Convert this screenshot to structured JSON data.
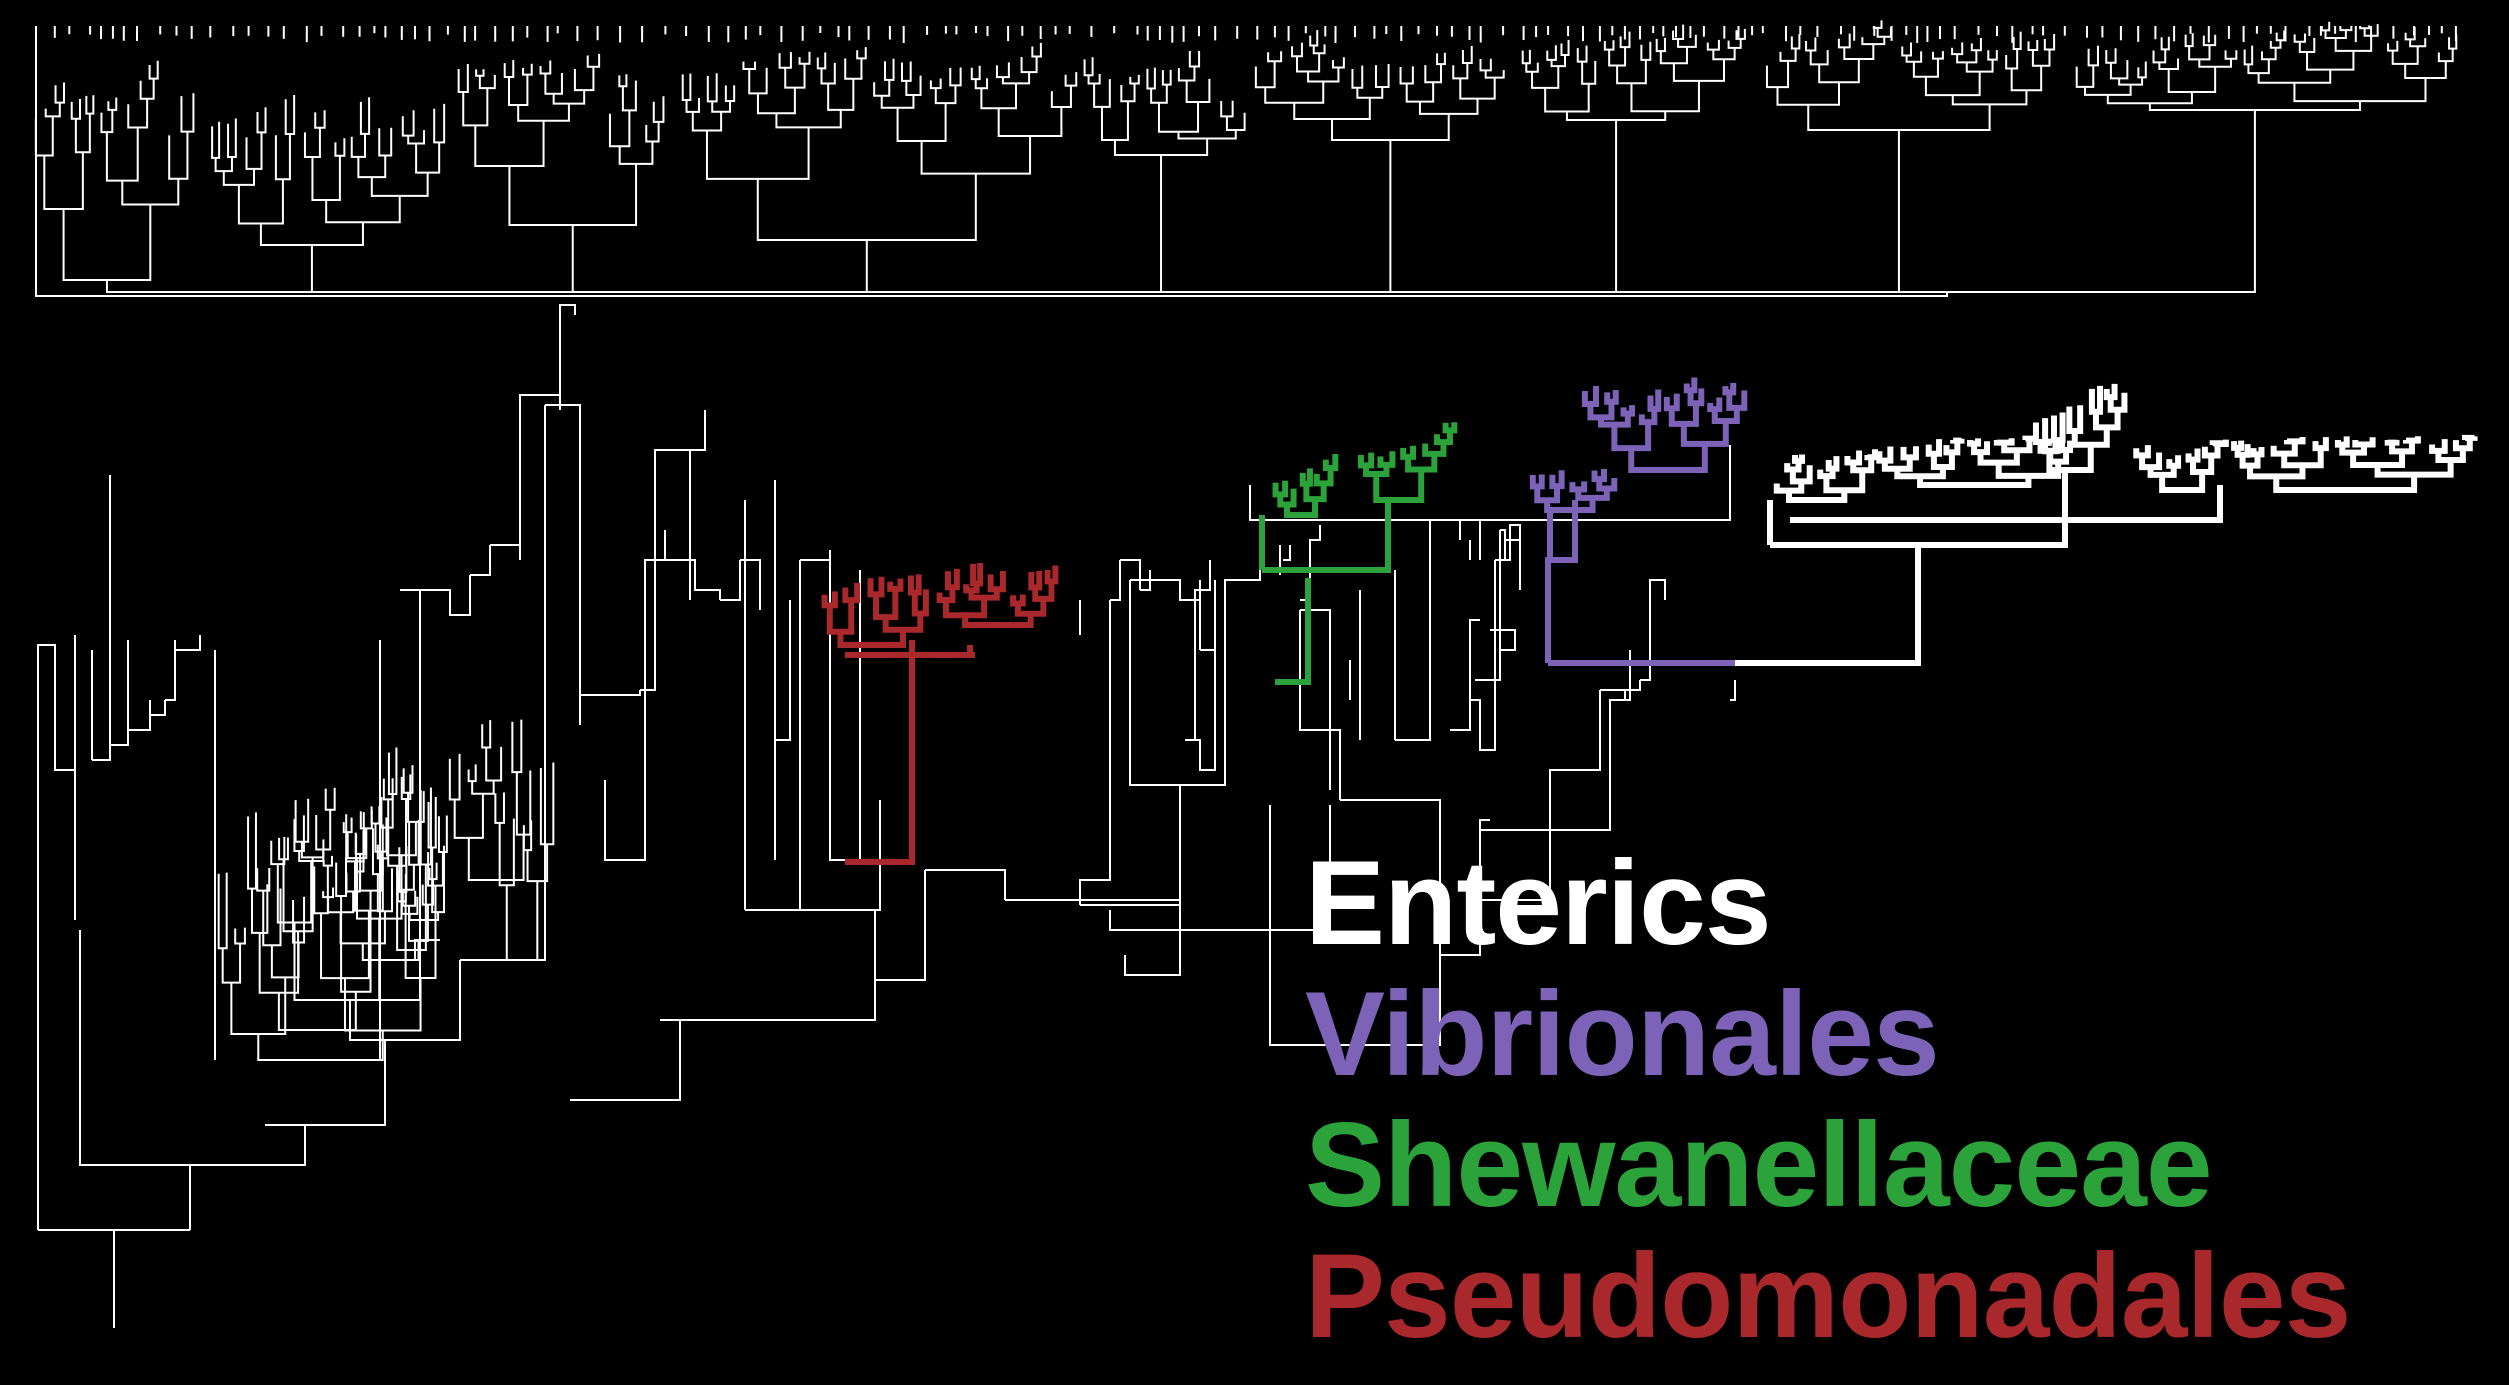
{
  "legend": {
    "items": [
      {
        "key": "enterics",
        "label": "Enterics",
        "color": "#ffffff"
      },
      {
        "key": "vibrionales",
        "label": "Vibrionales",
        "color": "#7d63b8"
      },
      {
        "key": "shewanellaceae",
        "label": "Shewanellaceae",
        "color": "#2ba33a"
      },
      {
        "key": "pseudomonadales",
        "label": "Pseudomonadales",
        "color": "#a8282b"
      }
    ]
  },
  "colors": {
    "background": "#000000",
    "default_branch": "#ffffff"
  }
}
